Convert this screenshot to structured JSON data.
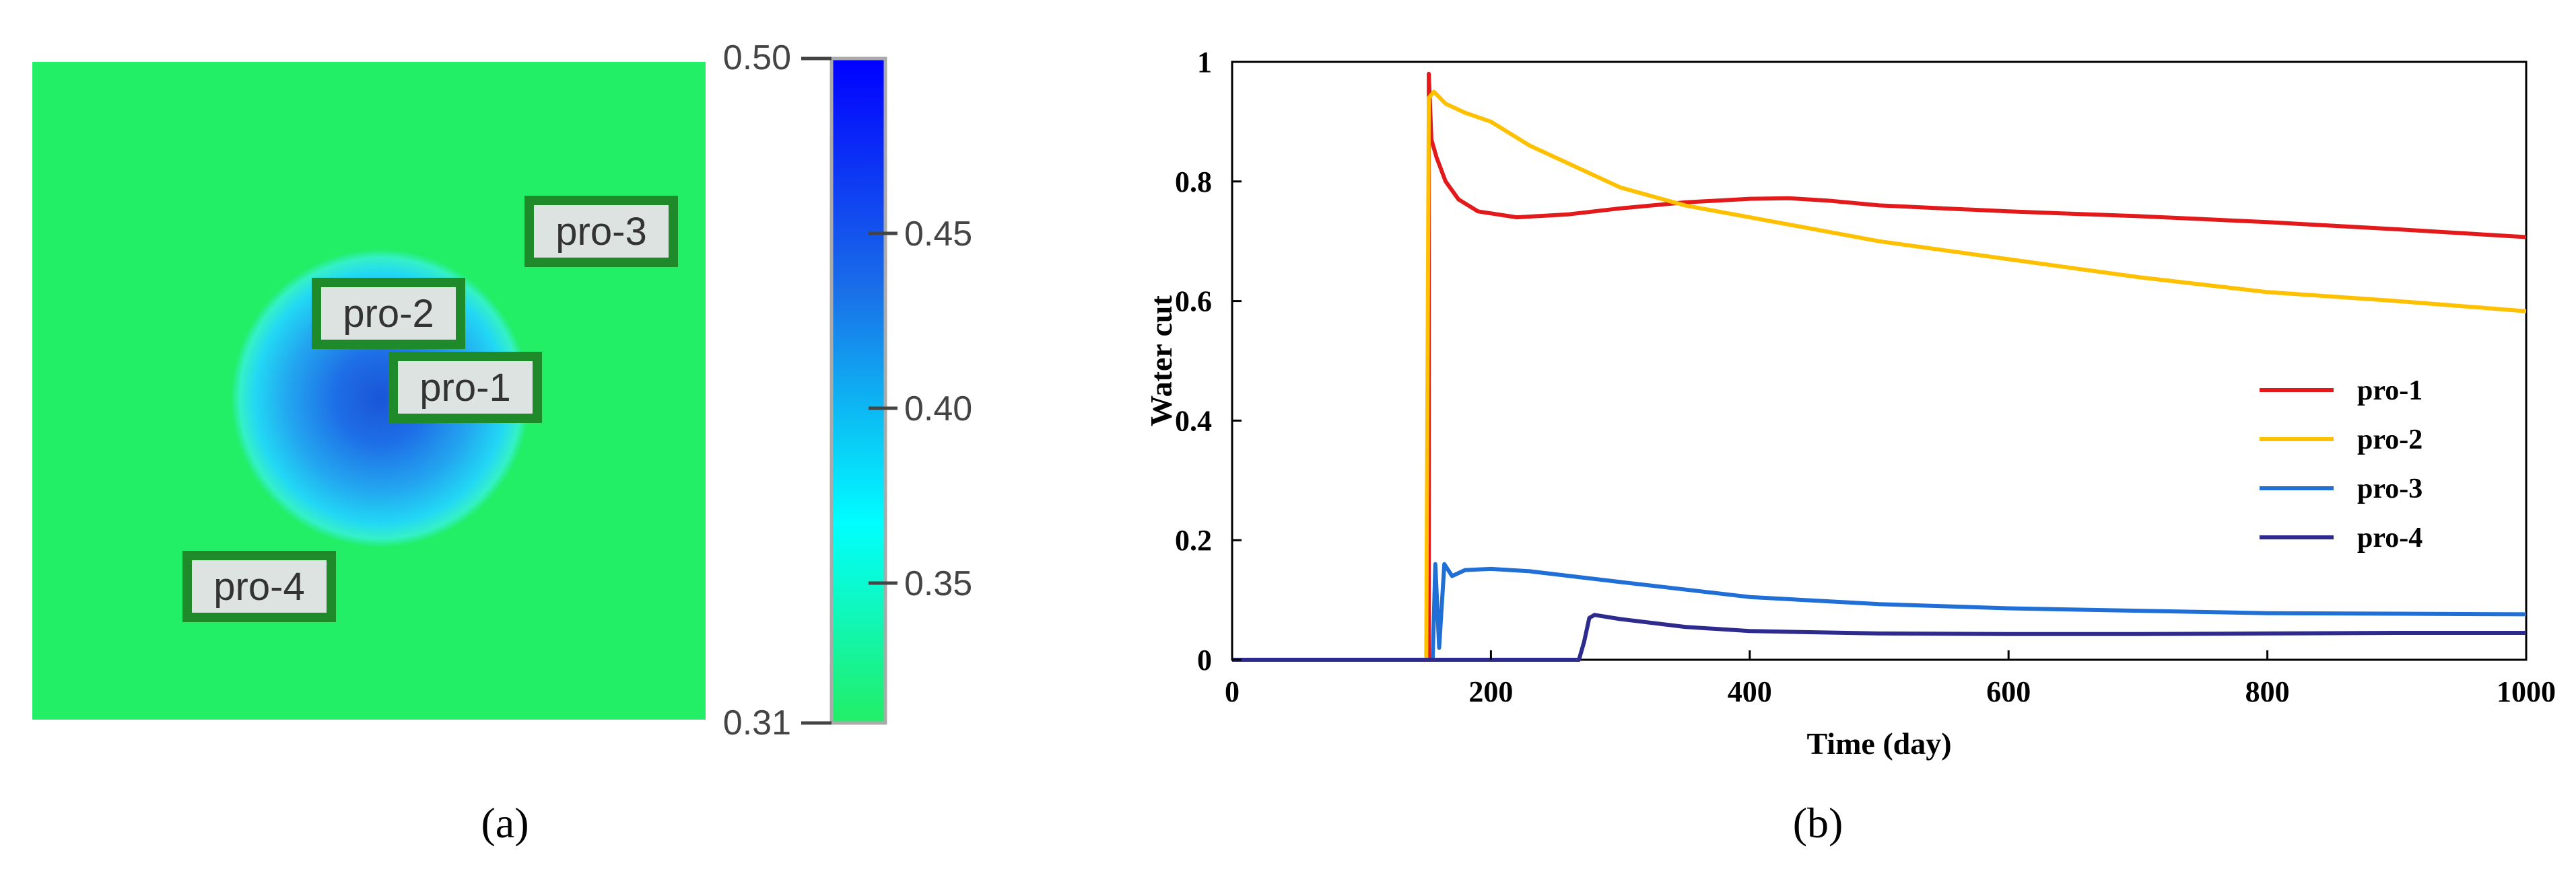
{
  "panels": {
    "a": {
      "caption": "(a)",
      "well_labels": [
        "pro-3",
        "pro-2",
        "pro-1",
        "pro-4"
      ],
      "colorbar": {
        "min_label": "0.31",
        "max_label": "0.50",
        "ticks": [
          "0.45",
          "0.40",
          "0.35"
        ],
        "tick_values": [
          0.45,
          0.4,
          0.35
        ],
        "min": 0.31,
        "max": 0.5,
        "colors": [
          "#22ee66",
          "#00ffff",
          "#1a6fe8",
          "#0000ff"
        ]
      },
      "field_background_color": "#22ee66"
    },
    "b": {
      "caption": "(b)"
    }
  },
  "chart_data": {
    "type": "line",
    "title": "",
    "xlabel": "Time (day)",
    "ylabel": "Water cut",
    "xlim": [
      0,
      1000
    ],
    "ylim": [
      0,
      1
    ],
    "xticks": [
      0,
      200,
      400,
      600,
      800,
      1000
    ],
    "yticks": [
      0,
      0.2,
      0.4,
      0.6,
      0.8,
      1
    ],
    "ytick_labels": [
      "0",
      "0.2",
      "0.4",
      "0.6",
      "0.8",
      "1"
    ],
    "grid": false,
    "legend_position": "right",
    "series": [
      {
        "name": "pro-1",
        "color": "#e31a1c",
        "x": [
          0,
          152,
          152,
          154,
          158,
          165,
          175,
          190,
          220,
          260,
          300,
          350,
          400,
          430,
          460,
          500,
          600,
          700,
          800,
          900,
          1000
        ],
        "y": [
          0,
          0,
          0.98,
          0.87,
          0.84,
          0.8,
          0.77,
          0.75,
          0.74,
          0.745,
          0.755,
          0.765,
          0.771,
          0.772,
          0.768,
          0.76,
          0.75,
          0.742,
          0.732,
          0.72,
          0.707
        ]
      },
      {
        "name": "pro-2",
        "color": "#ffc000",
        "x": [
          0,
          150,
          152,
          156,
          165,
          180,
          200,
          230,
          270,
          300,
          350,
          400,
          500,
          600,
          700,
          800,
          900,
          1000
        ],
        "y": [
          0,
          0,
          0.94,
          0.95,
          0.93,
          0.915,
          0.9,
          0.86,
          0.82,
          0.79,
          0.76,
          0.74,
          0.7,
          0.67,
          0.64,
          0.615,
          0.6,
          0.583
        ]
      },
      {
        "name": "pro-3",
        "color": "#1f6fd6",
        "x": [
          0,
          155,
          157,
          160,
          164,
          170,
          180,
          200,
          230,
          300,
          400,
          500,
          600,
          700,
          800,
          900,
          1000
        ],
        "y": [
          0,
          0,
          0.16,
          0.02,
          0.16,
          0.14,
          0.15,
          0.152,
          0.148,
          0.13,
          0.105,
          0.093,
          0.086,
          0.082,
          0.078,
          0.077,
          0.076
        ]
      },
      {
        "name": "pro-4",
        "color": "#2e2b8f",
        "x": [
          0,
          268,
          272,
          276,
          280,
          300,
          350,
          400,
          500,
          600,
          700,
          800,
          900,
          1000
        ],
        "y": [
          0,
          0,
          0.03,
          0.07,
          0.075,
          0.068,
          0.055,
          0.048,
          0.044,
          0.043,
          0.043,
          0.044,
          0.045,
          0.045
        ]
      }
    ]
  }
}
